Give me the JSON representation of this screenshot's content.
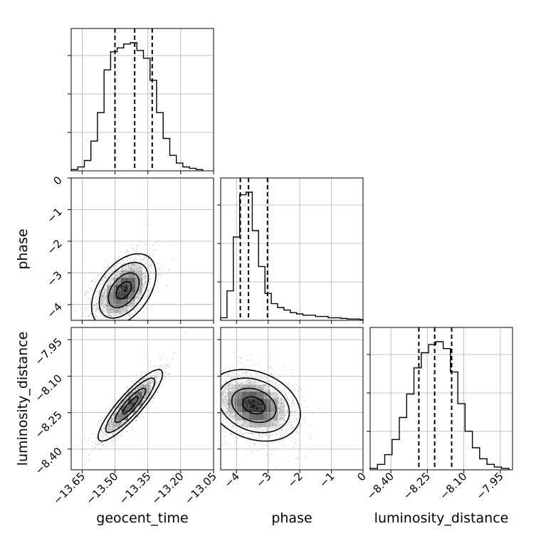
{
  "chart_data": {
    "type": "corner",
    "parameters": [
      "geocent_time",
      "phase",
      "luminosity_distance"
    ],
    "labels": {
      "geocent_time": "geocent_time",
      "phase": "phase",
      "luminosity_distance": "luminosity_distance"
    },
    "colors": {
      "line": "#000000",
      "points": "#808080",
      "grid": "#b0b0b0"
    },
    "grid": true,
    "ranges": {
      "geocent_time": [
        -13.7,
        -13.05
      ],
      "phase": [
        -4.5,
        0.0
      ],
      "luminosity_distance": [
        -8.485,
        -7.9
      ]
    },
    "tick_labels": {
      "geocent_time": [
        "−13.65",
        "−13.50",
        "−13.35",
        "−13.20",
        "−13.05"
      ],
      "geocent_time_values": [
        -13.65,
        -13.5,
        -13.35,
        -13.2,
        -13.05
      ],
      "phase": [
        "−4",
        "−3",
        "−2",
        "−1",
        "0"
      ],
      "phase_values": [
        -4,
        -3,
        -2,
        -1,
        0
      ],
      "luminosity_distance": [
        "−8.40",
        "−8.25",
        "−8.10",
        "−7.95"
      ],
      "luminosity_distance_values": [
        -8.4,
        -8.25,
        -8.1,
        -7.95
      ]
    },
    "quantiles": {
      "geocent_time": [
        -13.5,
        -13.41,
        -13.33
      ],
      "phase": [
        -3.88,
        -3.62,
        -3.02
      ],
      "luminosity_distance": [
        -8.285,
        -8.22,
        -8.15
      ]
    },
    "histograms": {
      "geocent_time": {
        "bins": [
          -13.7,
          -13.67,
          -13.64,
          -13.61,
          -13.58,
          -13.55,
          -13.52,
          -13.49,
          -13.46,
          -13.43,
          -13.4,
          -13.37,
          -13.34,
          -13.31,
          -13.28,
          -13.25,
          -13.22,
          -13.19,
          -13.16,
          -13.13,
          -13.1
        ],
        "counts": [
          1,
          3,
          8,
          23,
          45,
          78,
          92,
          95,
          98,
          99,
          93,
          87,
          70,
          45,
          25,
          12,
          6,
          3,
          2,
          1
        ]
      },
      "phase": {
        "bins": [
          -4.5,
          -4.3,
          -4.1,
          -3.9,
          -3.7,
          -3.5,
          -3.3,
          -3.1,
          -2.9,
          -2.7,
          -2.5,
          -2.3,
          -2.1,
          -1.9,
          -1.7,
          -1.5,
          -1.3,
          -1.1,
          -0.9,
          -0.7,
          -0.5,
          -0.3,
          -0.1,
          0.0
        ],
        "counts": [
          2,
          23,
          65,
          98,
          100,
          70,
          42,
          21,
          13,
          10,
          8,
          6,
          5,
          4,
          4,
          3,
          3,
          2,
          2,
          1.5,
          1,
          1,
          0.5
        ]
      },
      "luminosity_distance": {
        "bins": [
          -8.485,
          -8.455,
          -8.425,
          -8.395,
          -8.365,
          -8.335,
          -8.305,
          -8.275,
          -8.245,
          -8.215,
          -8.185,
          -8.155,
          -8.125,
          -8.095,
          -8.065,
          -8.035,
          -8.005,
          -7.975,
          -7.945,
          -7.915
        ],
        "counts": [
          1,
          4,
          11,
          22,
          38,
          55,
          74,
          85,
          91,
          93,
          88,
          71,
          48,
          28,
          16,
          8,
          4,
          2,
          1
        ]
      }
    },
    "scatter_2d": [
      {
        "x": "geocent_time",
        "y": "phase",
        "mean": [
          -13.46,
          -3.55
        ],
        "sd": [
          0.07,
          0.55
        ],
        "corr": 0.45
      },
      {
        "x": "geocent_time",
        "y": "luminosity_distance",
        "mean": [
          -13.43,
          -8.22
        ],
        "sd": [
          0.07,
          0.07
        ],
        "corr": 0.88
      },
      {
        "x": "phase",
        "y": "luminosity_distance",
        "mean": [
          -3.45,
          -8.22
        ],
        "sd": [
          0.7,
          0.07
        ],
        "corr": -0.25
      }
    ]
  }
}
